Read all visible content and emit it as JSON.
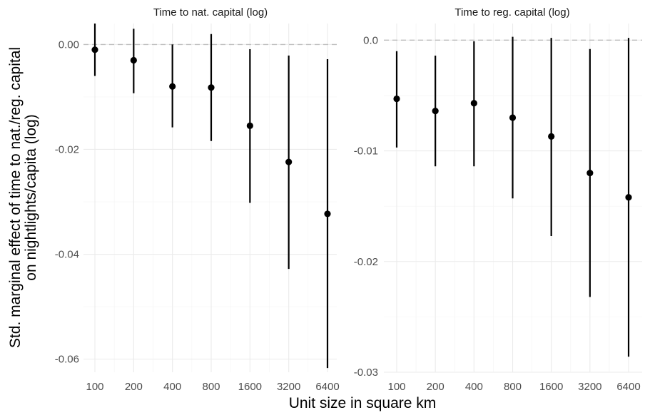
{
  "chart_data": {
    "type": "scatter",
    "subtype": "pointrange-faceted",
    "ylabel_lines": [
      "Std. marginal effect of time to nat./reg. capital",
      "on nightlights/capita (log)"
    ],
    "xlabel": "Unit size in square km",
    "categories": [
      "100",
      "200",
      "400",
      "800",
      "1600",
      "3200",
      "6400"
    ],
    "grid": true,
    "reference_line": {
      "y": 0,
      "style": "dashed",
      "color": "#bdbdbd"
    },
    "point_color": "#000000",
    "panels": [
      {
        "title": "Time to nat. capital (log)",
        "ylim": [
          -0.0625,
          0.004
        ],
        "yticks": [
          0.0,
          -0.02,
          -0.04,
          -0.06
        ],
        "ytick_labels": [
          "0.00",
          "-0.02",
          "-0.04",
          "-0.06"
        ],
        "estimates": [
          -0.001,
          -0.003,
          -0.008,
          -0.0082,
          -0.0155,
          -0.0224,
          -0.0323
        ],
        "lower": [
          -0.006,
          -0.0093,
          -0.0158,
          -0.0184,
          -0.0302,
          -0.0428,
          -0.0617
        ],
        "upper": [
          0.004,
          0.003,
          0.0,
          0.002,
          -0.0009,
          -0.0021,
          -0.0028
        ]
      },
      {
        "title": "Time to reg. capital (log)",
        "ylim": [
          -0.03,
          0.0015
        ],
        "yticks": [
          0.0,
          -0.01,
          -0.02,
          -0.03
        ],
        "ytick_labels": [
          "0.0",
          "-0.01",
          "-0.02",
          "-0.03"
        ],
        "estimates": [
          -0.0053,
          -0.0064,
          -0.0057,
          -0.007,
          -0.0087,
          -0.012,
          -0.0142
        ],
        "lower": [
          -0.0097,
          -0.0114,
          -0.0114,
          -0.0143,
          -0.0177,
          -0.0232,
          -0.0286
        ],
        "upper": [
          -0.001,
          -0.0014,
          -0.0001,
          0.0003,
          0.0002,
          -0.0008,
          0.0002
        ]
      }
    ]
  }
}
